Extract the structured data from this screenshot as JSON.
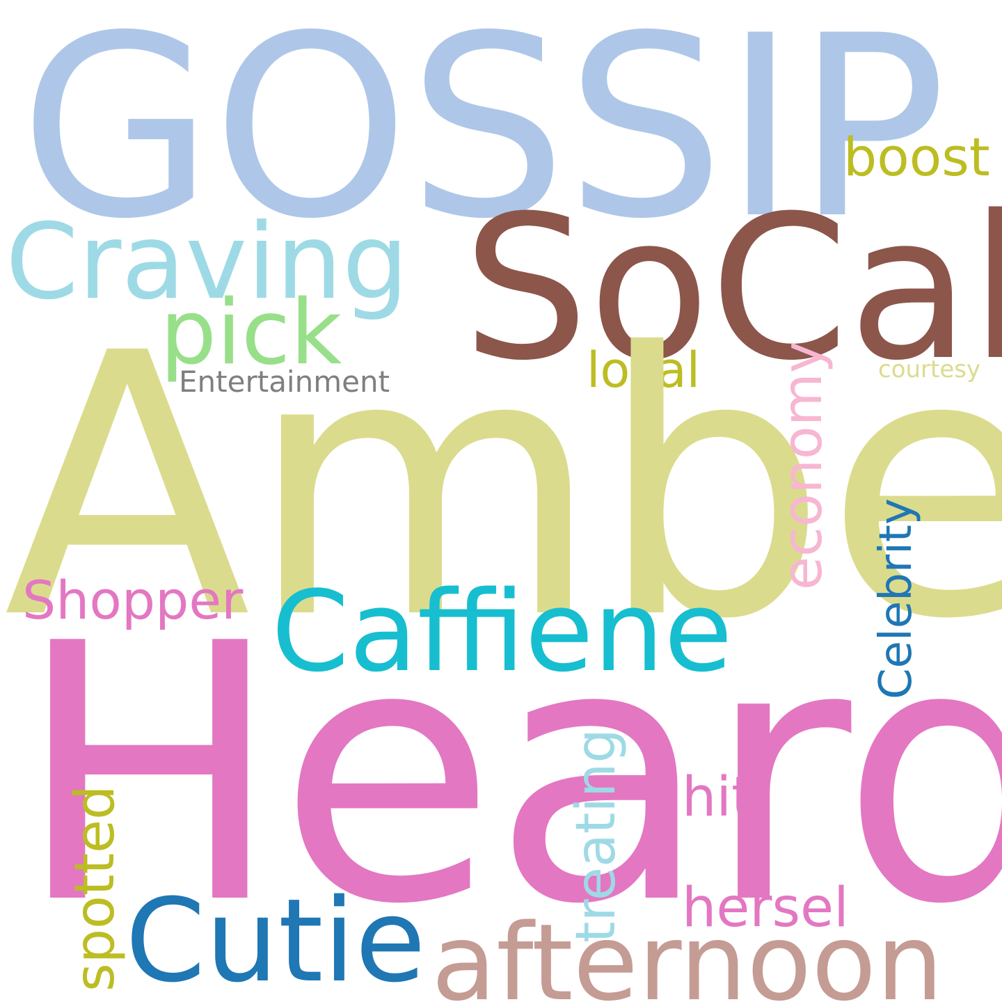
{
  "words": {
    "gossip": {
      "text": "GOSSIP",
      "color": "#aec7e8"
    },
    "socal": {
      "text": "SoCal",
      "color": "#8c564b"
    },
    "craving": {
      "text": "Craving",
      "color": "#9edae5"
    },
    "boost": {
      "text": "boost",
      "color": "#bcbd22"
    },
    "pick": {
      "text": "pick",
      "color": "#98df8a"
    },
    "local": {
      "text": "local",
      "color": "#bcbd22"
    },
    "courtesy": {
      "text": "courtesy",
      "color": "#dbdb8d"
    },
    "entertainment": {
      "text": "Entertainment",
      "color": "#7f7f7f"
    },
    "amber": {
      "text": "Amber",
      "color": "#dbdb8d"
    },
    "economy": {
      "text": "economy",
      "color": "#f7b6d2"
    },
    "celebrity": {
      "text": "Celebrity",
      "color": "#1f77b4"
    },
    "shopper": {
      "text": "Shopper",
      "color": "#e377c2"
    },
    "caffiene": {
      "text": "Caffiene",
      "color": "#17becf"
    },
    "heard": {
      "text": "Heard",
      "color": "#e377c2"
    },
    "treating": {
      "text": "treating",
      "color": "#9edae5"
    },
    "hit": {
      "text": "hit",
      "color": "#e377c2"
    },
    "hersel": {
      "text": "hersel",
      "color": "#e377c2"
    },
    "spotted": {
      "text": "spotted",
      "color": "#bcbd22"
    },
    "cutie": {
      "text": "Cutie",
      "color": "#1f77b4"
    },
    "afternoon": {
      "text": "afternoon",
      "color": "#c49c94"
    }
  }
}
